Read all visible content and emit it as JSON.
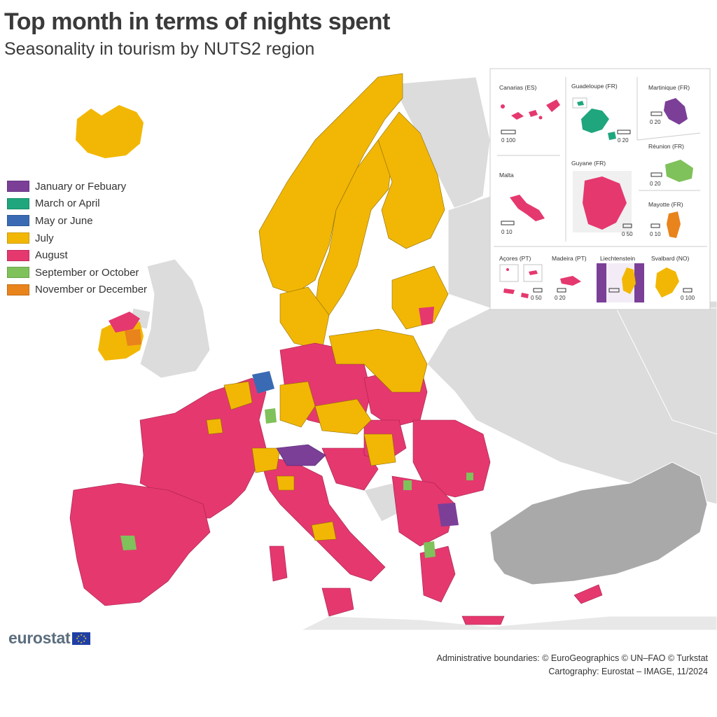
{
  "title": "Top month in terms of nights spent",
  "subtitle": "Seasonality in tourism by NUTS2 region",
  "legend": [
    {
      "label": "January or Febuary",
      "color": "#7b3f98"
    },
    {
      "label": "March or April",
      "color": "#1fa67c"
    },
    {
      "label": "May or June",
      "color": "#3a6ab4"
    },
    {
      "label": "July",
      "color": "#f2b705"
    },
    {
      "label": "August",
      "color": "#e5386f"
    },
    {
      "label": "September or October",
      "color": "#7fc15a"
    },
    {
      "label": "November or December",
      "color": "#e9831c"
    }
  ],
  "insets": {
    "canarias": {
      "name": "Canarias (ES)",
      "scale": "0   100"
    },
    "guadeloupe": {
      "name": "Guadeloupe (FR)",
      "scale": "0   20"
    },
    "martinique": {
      "name": "Martinique (FR)",
      "scale": "0   20"
    },
    "reunion": {
      "name": "Réunion (FR)",
      "scale": "0   20"
    },
    "malta": {
      "name": "Malta",
      "scale": "0   10"
    },
    "guyane": {
      "name": "Guyane (FR)",
      "scale": "0 50"
    },
    "mayotte": {
      "name": "Mayotte (FR)",
      "scale": "0   10"
    },
    "acores": {
      "name": "Açores (PT)",
      "scale": "0   50"
    },
    "madeira": {
      "name": "Madeira (PT)",
      "scale": "0 20"
    },
    "liechtenstein": {
      "name": "Liechtenstein",
      "scale": ""
    },
    "svalbard": {
      "name": "Svalbard (NO)",
      "scale": "0 100"
    }
  },
  "logo": "eurostat",
  "credits": {
    "line1": "Administrative boundaries: © EuroGeographics © UN–FAO © Turkstat",
    "line2": "Cartography: Eurostat – IMAGE, 11/2024"
  }
}
